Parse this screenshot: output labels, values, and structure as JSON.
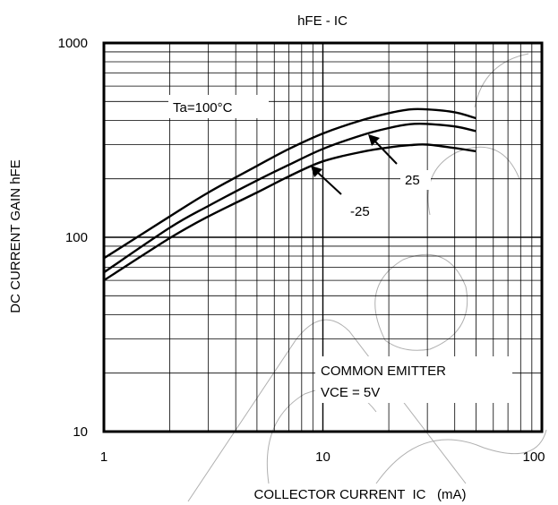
{
  "chart_data": {
    "type": "line",
    "title": "hFE - IC",
    "xlabel": "COLLECTOR CURRENT  IC   (mA)",
    "ylabel": "DC CURRENT GAIN  hFE",
    "x_scale": "log",
    "y_scale": "log",
    "xlim": [
      1,
      100
    ],
    "ylim": [
      10,
      1000
    ],
    "grid": true,
    "x_ticks": [
      {
        "value": 1,
        "label": "1"
      },
      {
        "value": 10,
        "label": "10"
      },
      {
        "value": 100,
        "label": "100"
      }
    ],
    "y_ticks": [
      {
        "value": 10,
        "label": "10"
      },
      {
        "value": 100,
        "label": "100"
      },
      {
        "value": 1000,
        "label": "1000"
      }
    ],
    "series": [
      {
        "name": "Ta=100°C",
        "x": [
          1,
          2,
          3,
          5,
          7,
          10,
          15,
          20,
          25,
          30,
          40,
          50
        ],
        "y": [
          78,
          128,
          170,
          233,
          285,
          342,
          400,
          435,
          455,
          455,
          440,
          410
        ]
      },
      {
        "name": "25",
        "x": [
          1,
          2,
          3,
          5,
          7,
          10,
          15,
          20,
          25,
          30,
          40,
          50
        ],
        "y": [
          66,
          112,
          145,
          196,
          236,
          285,
          335,
          365,
          382,
          383,
          372,
          352
        ]
      },
      {
        "name": "-25",
        "x": [
          1,
          2,
          3,
          5,
          7,
          10,
          15,
          20,
          25,
          30,
          40,
          50
        ],
        "y": [
          60,
          99,
          128,
          170,
          206,
          246,
          275,
          290,
          298,
          300,
          288,
          277
        ]
      }
    ],
    "annotations": [
      {
        "text": "Ta=100°C",
        "target_series": "Ta=100°C"
      },
      {
        "text": "25",
        "target_series": "25",
        "arrow_to": {
          "x": 20,
          "y": 370
        }
      },
      {
        "text": "-25",
        "target_series": "-25",
        "arrow_to": {
          "x": 10,
          "y": 248
        }
      },
      {
        "text": "COMMON EMITTER"
      },
      {
        "text": "VCE = 5V"
      }
    ]
  }
}
